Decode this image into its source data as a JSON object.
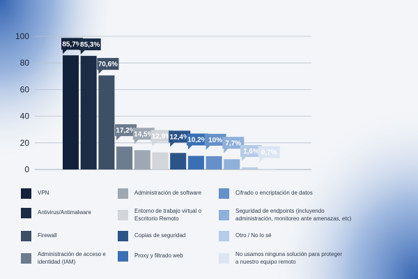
{
  "chart_data": {
    "type": "bar",
    "title": "",
    "xlabel": "",
    "ylabel": "",
    "ylim": [
      0,
      100
    ],
    "yticks": [
      0,
      20,
      40,
      60,
      80,
      100
    ],
    "grid": true,
    "legend_position": "bottom",
    "categories": [
      "VPN",
      "Antivirus/Antimalware",
      "Firewall",
      "Administración de acceso e identidad (IAM)",
      "Administración de software",
      "Entorno de trabajo virtual o Escritorio Remoto",
      "Copias de seguridad",
      "Proxy y filtrado web",
      "Cifrado o encriptación de datos",
      "Seguridad de endpoints (incluyendo administración, monitoreo ante amenazas, etc)",
      "Otro / No lo sé",
      "No usamos ninguna solución para proteger a nuestro equipo remoto"
    ],
    "values": [
      85.7,
      85.3,
      70.6,
      17.2,
      14.5,
      12.9,
      12.4,
      10.2,
      10,
      7.7,
      1.6,
      0.7
    ],
    "data_labels": [
      "85,7%",
      "85,3%",
      "70,6%",
      "17,2%",
      "14,5%",
      "12,9%",
      "12,4%",
      "10,2%",
      "10%",
      "7,7%",
      "1,6%",
      "0,7%"
    ],
    "colors": [
      "#13213a",
      "#1a2d45",
      "#3e5066",
      "#6d7c8e",
      "#9ea8b3",
      "#d2d6db",
      "#2b5488",
      "#3a6fb4",
      "#6590c8",
      "#8fb0d9",
      "#b6cbe7",
      "#dce6f2"
    ]
  },
  "legend": {
    "col1": [
      "VPN",
      "Antivirus/Antimalware",
      "Firewall",
      "Administración de acceso e\nidentidad (IAM)"
    ],
    "col2": [
      "Administración de software",
      "Entorno de trabajo virtual o\nEscritorio Remoto",
      "Copias de seguridad",
      "Proxy y filtrado web"
    ],
    "col3": [
      "Cifrado o encriptación de datos",
      "Seguridad de endpoints (incluyendo\nadministración, monitoreo ante amenazas, etc)",
      "Otro / No lo sé",
      "No usamos ninguna solución para proteger\na nuestro equipo remoto"
    ]
  }
}
